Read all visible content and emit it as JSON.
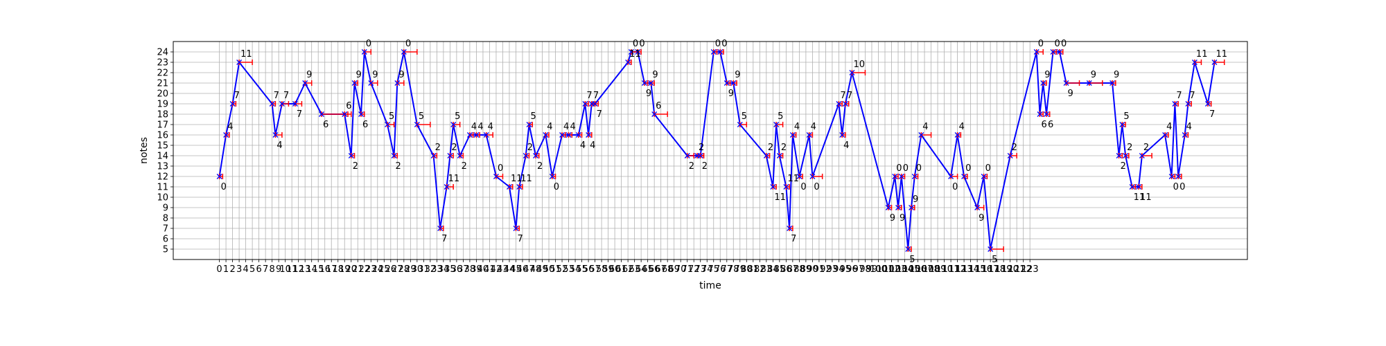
{
  "chart_data": {
    "type": "line",
    "xlabel": "time",
    "ylabel": "notes",
    "ylim": [
      4,
      25
    ],
    "xlim": [
      -7,
      156
    ],
    "grid": true,
    "y_ticks": [
      5,
      6,
      7,
      8,
      9,
      10,
      11,
      12,
      13,
      14,
      15,
      16,
      17,
      18,
      19,
      20,
      21,
      22,
      23,
      24
    ],
    "x_tick_labels": [
      "0",
      "1",
      "2",
      "3",
      "4",
      "5",
      "6",
      "7",
      "8",
      "9",
      "10",
      "11",
      "12",
      "13",
      "14",
      "15",
      "16",
      "17",
      "18",
      "19",
      "20",
      "21",
      "22",
      "23",
      "24",
      "25",
      "26",
      "27",
      "28",
      "29",
      "30",
      "31",
      "32",
      "33",
      "34",
      "35",
      "36",
      "37",
      "38",
      "39",
      "40",
      "41",
      "42",
      "43",
      "44",
      "45",
      "46",
      "47",
      "48",
      "49",
      "50",
      "51",
      "52",
      "53",
      "54",
      "55",
      "56",
      "57",
      "58",
      "59",
      "60",
      "61",
      "62",
      "63",
      "64",
      "65",
      "66",
      "67",
      "68",
      "69",
      "70",
      "71",
      "72",
      "73",
      "74",
      "75",
      "76",
      "77",
      "78",
      "79",
      "80",
      "81",
      "82",
      "83",
      "84",
      "85",
      "86",
      "87",
      "88",
      "89",
      "90",
      "91",
      "92",
      "93",
      "94",
      "95",
      "96",
      "97",
      "98",
      "99",
      "100",
      "101",
      "102",
      "103",
      "104",
      "105",
      "106",
      "107",
      "108",
      "109",
      "110",
      "111",
      "112",
      "113",
      "114",
      "115",
      "116",
      "117",
      "118",
      "119",
      "120",
      "121",
      "122",
      "123"
    ],
    "line_color": "#0000ff",
    "marker_color": "#ff0000",
    "points": [
      {
        "x": 0,
        "y": 12,
        "label": "0",
        "dur": 0.5
      },
      {
        "x": 1,
        "y": 16,
        "label": "4",
        "dur": 0.5
      },
      {
        "x": 2,
        "y": 19,
        "label": "7",
        "dur": 0.5
      },
      {
        "x": 3,
        "y": 23,
        "label": "11",
        "dur": 2
      },
      {
        "x": 8,
        "y": 19,
        "label": "7",
        "dur": 0.5
      },
      {
        "x": 8.5,
        "y": 16,
        "label": "4",
        "dur": 1
      },
      {
        "x": 9.5,
        "y": 19,
        "label": "7",
        "dur": 1
      },
      {
        "x": 11.5,
        "y": 19,
        "label": "7",
        "dur": 1
      },
      {
        "x": 13,
        "y": 21,
        "label": "9",
        "dur": 1
      },
      {
        "x": 15.5,
        "y": 18,
        "label": "6",
        "dur": 4
      },
      {
        "x": 19,
        "y": 18,
        "label": "6",
        "dur": 1
      },
      {
        "x": 20,
        "y": 14,
        "label": "2",
        "dur": 0.5
      },
      {
        "x": 20.5,
        "y": 21,
        "label": "9",
        "dur": 0.5
      },
      {
        "x": 21.5,
        "y": 18,
        "label": "6",
        "dur": 0.5
      },
      {
        "x": 22,
        "y": 24,
        "label": "0",
        "dur": 1
      },
      {
        "x": 23,
        "y": 21,
        "label": "9",
        "dur": 1
      },
      {
        "x": 25.5,
        "y": 17,
        "label": "5",
        "dur": 1
      },
      {
        "x": 26.5,
        "y": 14,
        "label": "2",
        "dur": 0.5
      },
      {
        "x": 27,
        "y": 21,
        "label": "9",
        "dur": 1
      },
      {
        "x": 28,
        "y": 24,
        "label": "0",
        "dur": 2
      },
      {
        "x": 30,
        "y": 17,
        "label": "5",
        "dur": 2
      },
      {
        "x": 32.5,
        "y": 14,
        "label": "2",
        "dur": 0.5
      },
      {
        "x": 33.5,
        "y": 7,
        "label": "7",
        "dur": 0.5
      },
      {
        "x": 34.5,
        "y": 11,
        "label": "11",
        "dur": 1
      },
      {
        "x": 35,
        "y": 14,
        "label": "2",
        "dur": 0.5
      },
      {
        "x": 35.5,
        "y": 17,
        "label": "5",
        "dur": 1
      },
      {
        "x": 36.5,
        "y": 14,
        "label": "2",
        "dur": 0.5
      },
      {
        "x": 38,
        "y": 16,
        "label": "4",
        "dur": 0.5
      },
      {
        "x": 39,
        "y": 16,
        "label": "4",
        "dur": 0.5
      },
      {
        "x": 40.5,
        "y": 16,
        "label": "4",
        "dur": 1
      },
      {
        "x": 42,
        "y": 12,
        "label": "0",
        "dur": 1
      },
      {
        "x": 44,
        "y": 11,
        "label": "11",
        "dur": 0.5
      },
      {
        "x": 45,
        "y": 7,
        "label": "7",
        "dur": 0.5
      },
      {
        "x": 45.5,
        "y": 11,
        "label": "11",
        "dur": 0.5
      },
      {
        "x": 46.5,
        "y": 14,
        "label": "2",
        "dur": 0.5
      },
      {
        "x": 47,
        "y": 17,
        "label": "5",
        "dur": 0.5
      },
      {
        "x": 48,
        "y": 14,
        "label": "2",
        "dur": 0.5
      },
      {
        "x": 49.5,
        "y": 16,
        "label": "4",
        "dur": 0.5
      },
      {
        "x": 50.5,
        "y": 12,
        "label": "0",
        "dur": 0.5
      },
      {
        "x": 52,
        "y": 16,
        "label": "4",
        "dur": 0.5
      },
      {
        "x": 53,
        "y": 16,
        "label": "4",
        "dur": 0.5
      },
      {
        "x": 54.5,
        "y": 16,
        "label": "4",
        "dur": 0.5
      },
      {
        "x": 55.5,
        "y": 19,
        "label": "7",
        "dur": 0.5
      },
      {
        "x": 56,
        "y": 16,
        "label": "4",
        "dur": 0.5
      },
      {
        "x": 56.5,
        "y": 19,
        "label": "7",
        "dur": 0.5
      },
      {
        "x": 57,
        "y": 19,
        "label": "7",
        "dur": 0.5
      },
      {
        "x": 62,
        "y": 23,
        "label": "11",
        "dur": 0.5
      },
      {
        "x": 62.5,
        "y": 24,
        "label": "0",
        "dur": 1
      },
      {
        "x": 63.5,
        "y": 24,
        "label": "0",
        "dur": 0.5
      },
      {
        "x": 64.5,
        "y": 21,
        "label": "9",
        "dur": 0.5
      },
      {
        "x": 65.5,
        "y": 21,
        "label": "9",
        "dur": 0.5
      },
      {
        "x": 66,
        "y": 18,
        "label": "6",
        "dur": 2
      },
      {
        "x": 71,
        "y": 14,
        "label": "2",
        "dur": 1
      },
      {
        "x": 72.5,
        "y": 14,
        "label": "2",
        "dur": 1
      },
      {
        "x": 73,
        "y": 14,
        "label": "2",
        "dur": 0.5
      },
      {
        "x": 75,
        "y": 24,
        "label": "0",
        "dur": 0.5
      },
      {
        "x": 76,
        "y": 24,
        "label": "0",
        "dur": 0.5
      },
      {
        "x": 77,
        "y": 21,
        "label": "9",
        "dur": 0.5
      },
      {
        "x": 78,
        "y": 21,
        "label": "9",
        "dur": 0.5
      },
      {
        "x": 79,
        "y": 17,
        "label": "5",
        "dur": 1
      },
      {
        "x": 83,
        "y": 14,
        "label": "2",
        "dur": 0.5
      },
      {
        "x": 84,
        "y": 11,
        "label": "11",
        "dur": 0.5
      },
      {
        "x": 84.5,
        "y": 17,
        "label": "5",
        "dur": 1
      },
      {
        "x": 85,
        "y": 14,
        "label": "2",
        "dur": 0.5
      },
      {
        "x": 86,
        "y": 11,
        "label": "11",
        "dur": 0.5
      },
      {
        "x": 86.5,
        "y": 7,
        "label": "7",
        "dur": 0.5
      },
      {
        "x": 87,
        "y": 16,
        "label": "4",
        "dur": 0.5
      },
      {
        "x": 88,
        "y": 12,
        "label": "0",
        "dur": 0.5
      },
      {
        "x": 89.5,
        "y": 16,
        "label": "4",
        "dur": 0.5
      },
      {
        "x": 90,
        "y": 12,
        "label": "0",
        "dur": 1.5
      },
      {
        "x": 94,
        "y": 19,
        "label": "7",
        "dur": 0.5
      },
      {
        "x": 94.5,
        "y": 16,
        "label": "4",
        "dur": 0.5
      },
      {
        "x": 95,
        "y": 19,
        "label": "7",
        "dur": 0.5
      },
      {
        "x": 96,
        "y": 22,
        "label": "10",
        "dur": 2
      },
      {
        "x": 101.5,
        "y": 9,
        "label": "9",
        "dur": 0.5
      },
      {
        "x": 102.5,
        "y": 12,
        "label": "0",
        "dur": 0.5
      },
      {
        "x": 103,
        "y": 9,
        "label": "9",
        "dur": 0.5
      },
      {
        "x": 103.5,
        "y": 12,
        "label": "0",
        "dur": 0.5
      },
      {
        "x": 104.5,
        "y": 5,
        "label": "5",
        "dur": 0.5
      },
      {
        "x": 105,
        "y": 9,
        "label": "9",
        "dur": 0.5
      },
      {
        "x": 105.5,
        "y": 12,
        "label": "0",
        "dur": 0.5
      },
      {
        "x": 106.5,
        "y": 16,
        "label": "4",
        "dur": 1.5
      },
      {
        "x": 111,
        "y": 12,
        "label": "0",
        "dur": 1
      },
      {
        "x": 112,
        "y": 16,
        "label": "4",
        "dur": 0.5
      },
      {
        "x": 113,
        "y": 12,
        "label": "0",
        "dur": 0.5
      },
      {
        "x": 115,
        "y": 9,
        "label": "9",
        "dur": 1
      },
      {
        "x": 116,
        "y": 12,
        "label": "0",
        "dur": 0.5
      },
      {
        "x": 117,
        "y": 5,
        "label": "5",
        "dur": 2
      },
      {
        "x": 120,
        "y": 14,
        "label": "2",
        "dur": 1
      },
      {
        "x": 124,
        "y": 24,
        "label": "0",
        "dur": 1
      },
      {
        "x": 124.5,
        "y": 18,
        "label": "6",
        "dur": 0.5
      },
      {
        "x": 125,
        "y": 21,
        "label": "9",
        "dur": 0.5
      },
      {
        "x": 125.5,
        "y": 18,
        "label": "6",
        "dur": 0.5
      },
      {
        "x": 126.5,
        "y": 24,
        "label": "0",
        "dur": 0.5
      },
      {
        "x": 127.5,
        "y": 24,
        "label": "0",
        "dur": 0.5
      },
      {
        "x": 128.5,
        "y": 21,
        "label": "9",
        "dur": 2
      },
      {
        "x": 132,
        "y": 21,
        "label": "9",
        "dur": 2
      },
      {
        "x": 135.5,
        "y": 21,
        "label": "9",
        "dur": 0.5
      },
      {
        "x": 136.5,
        "y": 14,
        "label": "2",
        "dur": 0.5
      },
      {
        "x": 137,
        "y": 17,
        "label": "5",
        "dur": 0.5
      },
      {
        "x": 137.5,
        "y": 14,
        "label": "2",
        "dur": 0.5
      },
      {
        "x": 138.5,
        "y": 11,
        "label": "11",
        "dur": 0.5
      },
      {
        "x": 139.5,
        "y": 11,
        "label": "11",
        "dur": 0.5
      },
      {
        "x": 140,
        "y": 14,
        "label": "2",
        "dur": 1.5
      },
      {
        "x": 143.5,
        "y": 16,
        "label": "4",
        "dur": 0.5
      },
      {
        "x": 144.5,
        "y": 12,
        "label": "0",
        "dur": 0.5
      },
      {
        "x": 145,
        "y": 19,
        "label": "7",
        "dur": 0.5
      },
      {
        "x": 145.5,
        "y": 12,
        "label": "0",
        "dur": 0.5
      },
      {
        "x": 146.5,
        "y": 16,
        "label": "4",
        "dur": 0.5
      },
      {
        "x": 147,
        "y": 19,
        "label": "7",
        "dur": 0.5
      },
      {
        "x": 148,
        "y": 23,
        "label": "11",
        "dur": 1
      },
      {
        "x": 150,
        "y": 19,
        "label": "7",
        "dur": 0.5
      },
      {
        "x": 151,
        "y": 23,
        "label": "11",
        "dur": 1.5
      }
    ]
  }
}
